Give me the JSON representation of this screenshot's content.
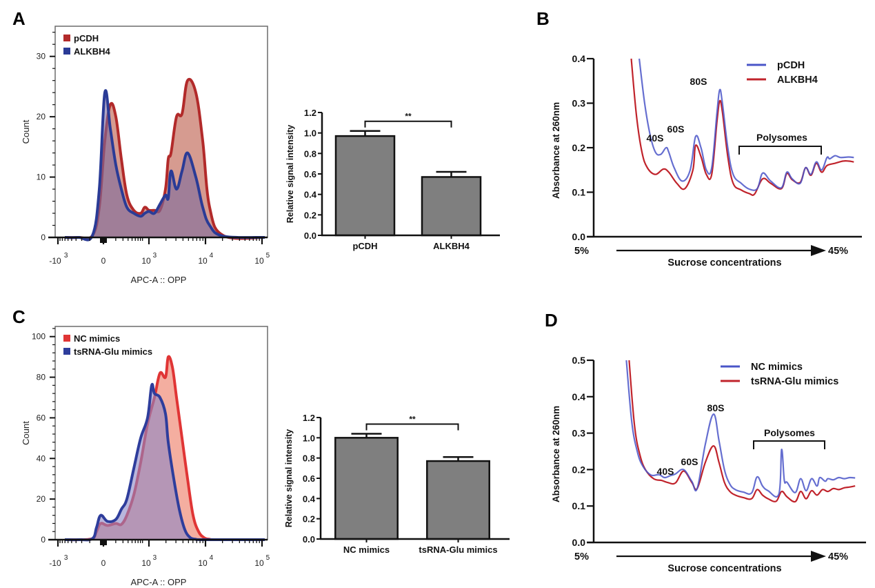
{
  "figure": {
    "panels": [
      "A",
      "B",
      "C",
      "D"
    ]
  },
  "chart_data": [
    {
      "id": "A",
      "type": "area",
      "subtype": "flow-cytometry-histogram",
      "xlabel": "APC-A :: OPP",
      "ylabel": "Count",
      "x_scale": "biexponential",
      "x_tick_labels": [
        {
          "base": "-10",
          "exp": "3"
        },
        {
          "base": "0",
          "exp": ""
        },
        {
          "base": "10",
          "exp": "3"
        },
        {
          "base": "10",
          "exp": "4"
        },
        {
          "base": "10",
          "exp": "5"
        }
      ],
      "ylim": [
        0,
        35
      ],
      "y_ticks": [
        0,
        10,
        20,
        30
      ],
      "legend_position": "top-left",
      "series": [
        {
          "name": "pCDH",
          "color": "#b22a2a",
          "fill": "#cf8a7d",
          "x": [
            0.05,
            0.15,
            0.25,
            0.3,
            0.34,
            0.38,
            0.42,
            0.46,
            0.5,
            0.55,
            0.6,
            0.63,
            0.66,
            0.7,
            0.74,
            0.78,
            0.8,
            0.82,
            0.86,
            0.9,
            0.94,
            1.0,
            1.05,
            1.1,
            1.2,
            1.5
          ],
          "y": [
            0,
            0,
            0.3,
            5,
            16,
            22,
            20,
            13,
            7,
            4.5,
            4,
            5,
            4.5,
            4.5,
            4.5,
            8,
            13,
            14,
            20,
            20.5,
            26,
            24,
            16,
            5,
            0.3,
            0
          ]
        },
        {
          "name": "ALKBH4",
          "color": "#2a3b96",
          "fill": "#7c6a9e",
          "x": [
            0.05,
            0.15,
            0.25,
            0.3,
            0.34,
            0.38,
            0.42,
            0.46,
            0.5,
            0.55,
            0.6,
            0.63,
            0.66,
            0.7,
            0.74,
            0.78,
            0.8,
            0.82,
            0.86,
            0.9,
            0.94,
            1.0,
            1.05,
            1.1,
            1.2,
            1.5
          ],
          "y": [
            0,
            0,
            0.3,
            8,
            24,
            18,
            12,
            8,
            5,
            4,
            3.5,
            4,
            4.3,
            4,
            5.5,
            7,
            6.5,
            11,
            8,
            11,
            14,
            10,
            5,
            2,
            0.2,
            0
          ]
        }
      ]
    },
    {
      "id": "A-bar",
      "type": "bar",
      "ylabel": "Relative signal intensity",
      "categories": [
        "pCDH",
        "ALKBH4"
      ],
      "values": [
        0.97,
        0.57
      ],
      "errors": [
        0.05,
        0.05
      ],
      "ylim": [
        0,
        1.2
      ],
      "y_tick_labels": [
        "0.0",
        "0.2",
        "0.4",
        "0.6",
        "0.8",
        "1.0",
        "1.2"
      ],
      "bar_color": "#7f7f7f",
      "significance": "**"
    },
    {
      "id": "B",
      "type": "line",
      "subtype": "polysome-profile",
      "ylabel": "Absorbance at 260nm",
      "xlabel": "Sucrose concentrations",
      "x_start_label": "5%",
      "x_end_label": "45%",
      "ylim": [
        0,
        0.4
      ],
      "y_tick_labels": [
        "0.0",
        "0.1",
        "0.2",
        "0.3",
        "0.4"
      ],
      "annotations": [
        "40S",
        "60S",
        "80S",
        "Polysomes"
      ],
      "legend_position": "top-right",
      "series": [
        {
          "name": "pCDH",
          "color": "#4a55c8",
          "x": [
            0.17,
            0.19,
            0.21,
            0.23,
            0.25,
            0.27,
            0.28,
            0.3,
            0.33,
            0.36,
            0.38,
            0.4,
            0.42,
            0.44,
            0.46,
            0.47,
            0.48,
            0.5,
            0.52,
            0.55,
            0.58,
            0.61,
            0.63,
            0.66,
            0.7,
            0.72,
            0.74,
            0.77,
            0.79,
            0.81,
            0.83,
            0.85,
            0.87,
            0.88,
            0.9,
            0.92,
            0.95,
            0.97
          ],
          "y": [
            0.4,
            0.3,
            0.23,
            0.19,
            0.185,
            0.2,
            0.19,
            0.155,
            0.125,
            0.15,
            0.225,
            0.2,
            0.15,
            0.155,
            0.28,
            0.33,
            0.3,
            0.2,
            0.14,
            0.12,
            0.107,
            0.108,
            0.143,
            0.125,
            0.11,
            0.145,
            0.13,
            0.12,
            0.155,
            0.14,
            0.168,
            0.15,
            0.178,
            0.175,
            0.182,
            0.178,
            0.179,
            0.178
          ]
        },
        {
          "name": "ALKBH4",
          "color": "#c0232b",
          "x": [
            0.14,
            0.16,
            0.18,
            0.2,
            0.23,
            0.26,
            0.28,
            0.31,
            0.34,
            0.37,
            0.38,
            0.4,
            0.42,
            0.44,
            0.46,
            0.47,
            0.48,
            0.5,
            0.52,
            0.55,
            0.58,
            0.6,
            0.63,
            0.66,
            0.7,
            0.72,
            0.74,
            0.77,
            0.79,
            0.81,
            0.83,
            0.85,
            0.87,
            0.9,
            0.93,
            0.95,
            0.97
          ],
          "y": [
            0.4,
            0.27,
            0.19,
            0.155,
            0.14,
            0.152,
            0.145,
            0.12,
            0.108,
            0.15,
            0.205,
            0.18,
            0.14,
            0.14,
            0.26,
            0.305,
            0.28,
            0.18,
            0.12,
            0.105,
            0.097,
            0.096,
            0.13,
            0.12,
            0.108,
            0.142,
            0.128,
            0.122,
            0.155,
            0.138,
            0.165,
            0.145,
            0.16,
            0.165,
            0.17,
            0.17,
            0.168
          ]
        }
      ]
    },
    {
      "id": "C",
      "type": "area",
      "subtype": "flow-cytometry-histogram",
      "xlabel": "APC-A :: OPP",
      "ylabel": "Count",
      "x_scale": "biexponential",
      "x_tick_labels": [
        {
          "base": "-10",
          "exp": "3"
        },
        {
          "base": "0",
          "exp": ""
        },
        {
          "base": "10",
          "exp": "3"
        },
        {
          "base": "10",
          "exp": "4"
        },
        {
          "base": "10",
          "exp": "5"
        }
      ],
      "ylim": [
        0,
        105
      ],
      "y_ticks": [
        0,
        20,
        40,
        60,
        80,
        100
      ],
      "legend_position": "top-left",
      "series": [
        {
          "name": "NC mimics",
          "color": "#e03535",
          "fill": "#f2a08f",
          "x": [
            0.05,
            0.15,
            0.25,
            0.28,
            0.31,
            0.36,
            0.42,
            0.46,
            0.5,
            0.55,
            0.6,
            0.65,
            0.7,
            0.74,
            0.78,
            0.8,
            0.83,
            0.86,
            0.9,
            0.94,
            0.98,
            1.02,
            1.06,
            1.1,
            1.15,
            1.5
          ],
          "y": [
            0,
            0,
            0.5,
            4,
            8,
            7,
            8,
            7.5,
            12,
            22,
            38,
            57,
            70,
            82,
            80,
            90,
            85,
            70,
            50,
            30,
            12,
            4,
            1,
            0.2,
            0,
            0
          ]
        },
        {
          "name": "tsRNA-Glu mimics",
          "color": "#2e3d9c",
          "fill": "#8a86c4",
          "x": [
            0.05,
            0.15,
            0.25,
            0.28,
            0.31,
            0.36,
            0.42,
            0.46,
            0.5,
            0.55,
            0.6,
            0.65,
            0.68,
            0.7,
            0.74,
            0.78,
            0.8,
            0.84,
            0.88,
            0.92,
            0.96,
            1.0,
            1.06,
            1.5
          ],
          "y": [
            0,
            0,
            0.5,
            6,
            12,
            9,
            10,
            15,
            20,
            35,
            50,
            60,
            76,
            72,
            70,
            62,
            48,
            30,
            15,
            5,
            1,
            0.2,
            0,
            0
          ]
        }
      ]
    },
    {
      "id": "C-bar",
      "type": "bar",
      "ylabel": "Relative signal intensity",
      "categories": [
        "NC mimics",
        "tsRNA-Glu mimics"
      ],
      "values": [
        1.0,
        0.77
      ],
      "errors": [
        0.04,
        0.04
      ],
      "ylim": [
        0,
        1.2
      ],
      "y_tick_labels": [
        "0.0",
        "0.2",
        "0.4",
        "0.6",
        "0.8",
        "1.0",
        "1.2"
      ],
      "bar_color": "#7f7f7f",
      "significance": "**"
    },
    {
      "id": "D",
      "type": "line",
      "subtype": "polysome-profile",
      "ylabel": "Absorbance at 260nm",
      "xlabel": "Sucrose concentrations",
      "x_start_label": "5%",
      "x_end_label": "45%",
      "ylim": [
        0,
        0.5
      ],
      "y_tick_labels": [
        "0.0",
        "0.1",
        "0.2",
        "0.3",
        "0.4",
        "0.5"
      ],
      "annotations": [
        "40S",
        "60S",
        "80S",
        "Polysomes"
      ],
      "legend_position": "top-right",
      "series": [
        {
          "name": "NC mimics",
          "color": "#4a55c8",
          "x": [
            0.12,
            0.14,
            0.16,
            0.18,
            0.21,
            0.24,
            0.26,
            0.28,
            0.3,
            0.33,
            0.36,
            0.38,
            0.41,
            0.44,
            0.46,
            0.48,
            0.5,
            0.52,
            0.55,
            0.58,
            0.6,
            0.62,
            0.64,
            0.68,
            0.69,
            0.7,
            0.71,
            0.74,
            0.76,
            0.78,
            0.8,
            0.82,
            0.83,
            0.85,
            0.86,
            0.88,
            0.9,
            0.92,
            0.94,
            0.96
          ],
          "y": [
            0.5,
            0.33,
            0.25,
            0.21,
            0.185,
            0.186,
            0.178,
            0.183,
            0.188,
            0.2,
            0.168,
            0.148,
            0.27,
            0.352,
            0.28,
            0.2,
            0.16,
            0.145,
            0.138,
            0.136,
            0.18,
            0.155,
            0.142,
            0.133,
            0.255,
            0.17,
            0.165,
            0.137,
            0.175,
            0.142,
            0.175,
            0.155,
            0.178,
            0.168,
            0.175,
            0.172,
            0.178,
            0.175,
            0.178,
            0.177
          ]
        },
        {
          "name": "tsRNA-Glu mimics",
          "color": "#c0232b",
          "x": [
            0.13,
            0.15,
            0.17,
            0.19,
            0.22,
            0.25,
            0.27,
            0.3,
            0.33,
            0.36,
            0.38,
            0.41,
            0.44,
            0.46,
            0.48,
            0.5,
            0.52,
            0.55,
            0.58,
            0.6,
            0.62,
            0.64,
            0.67,
            0.69,
            0.71,
            0.74,
            0.76,
            0.78,
            0.8,
            0.82,
            0.84,
            0.86,
            0.88,
            0.9,
            0.92,
            0.94,
            0.96
          ],
          "y": [
            0.5,
            0.32,
            0.24,
            0.2,
            0.175,
            0.17,
            0.165,
            0.163,
            0.196,
            0.165,
            0.148,
            0.22,
            0.265,
            0.22,
            0.165,
            0.14,
            0.13,
            0.123,
            0.12,
            0.145,
            0.13,
            0.12,
            0.113,
            0.14,
            0.125,
            0.112,
            0.14,
            0.12,
            0.142,
            0.13,
            0.145,
            0.14,
            0.148,
            0.145,
            0.15,
            0.152,
            0.155
          ]
        }
      ]
    }
  ]
}
